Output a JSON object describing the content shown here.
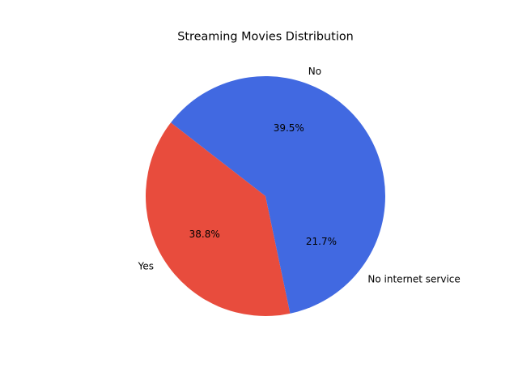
{
  "chart_data": {
    "type": "pie",
    "title": "Streaming Movies Distribution",
    "start_angle_deg": 0,
    "direction": "counterclockwise",
    "slices": [
      {
        "label": "No",
        "value": 39.5,
        "pct_label": "39.5%",
        "color": "#4169e1"
      },
      {
        "label": "Yes",
        "value": 38.8,
        "pct_label": "38.8%",
        "color": "#e84c3d"
      },
      {
        "label": "No internet service",
        "value": 21.7,
        "pct_label": "21.7%",
        "color": "#4169e1"
      }
    ]
  }
}
